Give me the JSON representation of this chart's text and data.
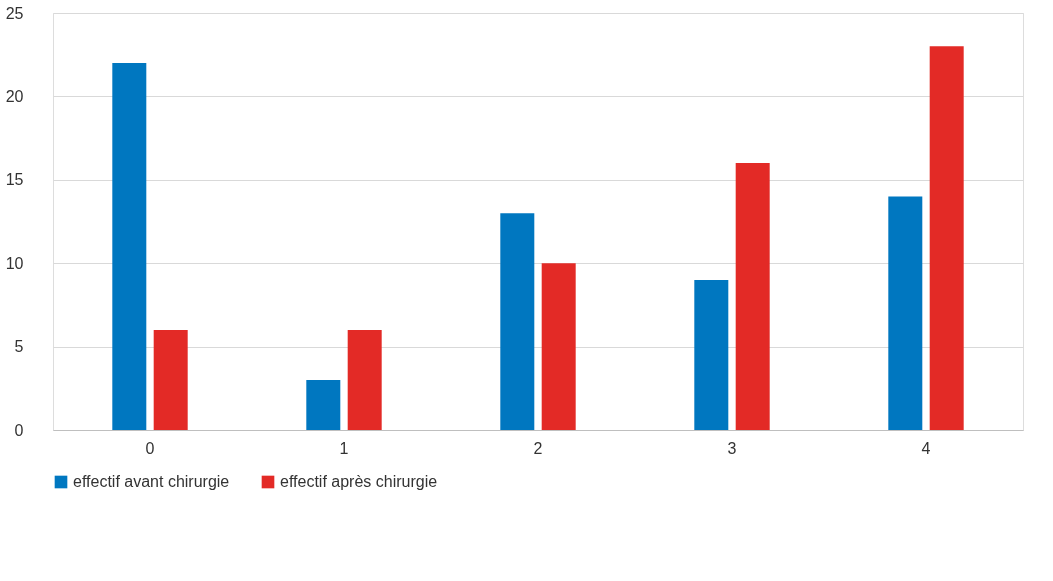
{
  "chart_data": {
    "type": "bar",
    "categories": [
      "0",
      "1",
      "2",
      "3",
      "4"
    ],
    "series": [
      {
        "name": "effectif avant chirurgie",
        "color": "#0077c0",
        "values": [
          22,
          3,
          13,
          9,
          14
        ]
      },
      {
        "name": "effectif après chirurgie",
        "color": "#e32a26",
        "values": [
          6,
          6,
          10,
          16,
          23
        ]
      }
    ],
    "ylim": [
      0,
      25
    ],
    "yticks": [
      0,
      5,
      10,
      15,
      20,
      25
    ],
    "grid": "y",
    "legend": "bottom"
  }
}
